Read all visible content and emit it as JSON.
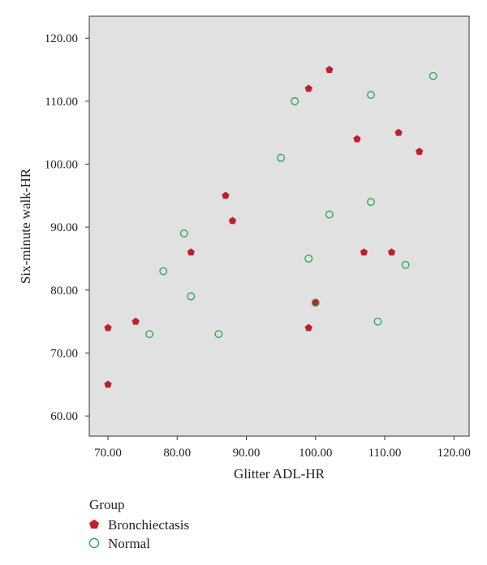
{
  "chart_data": {
    "type": "scatter",
    "xlabel": "Glitter ADL-HR",
    "ylabel": "Six-minute walk-HR",
    "xlim": [
      67.3,
      122.2
    ],
    "ylim": [
      56.8,
      123.5
    ],
    "xticks": [
      70,
      80,
      90,
      100,
      110,
      120
    ],
    "yticks": [
      60,
      70,
      80,
      90,
      100,
      110,
      120
    ],
    "xtick_labels": [
      "70.00",
      "80.00",
      "90.00",
      "100.00",
      "110.00",
      "120.00"
    ],
    "ytick_labels": [
      "60.00",
      "70.00",
      "80.00",
      "90.00",
      "100.00",
      "110.00",
      "120.00"
    ],
    "grid": false,
    "plot_background": "#e1e1e1",
    "legend": {
      "title": "Group",
      "placement": "bottom-left"
    },
    "series": [
      {
        "name": "Bronchiectasis",
        "marker": "pentagon-filled",
        "color": "#c01f2a",
        "points": [
          [
            70,
            74
          ],
          [
            70,
            65
          ],
          [
            74,
            75
          ],
          [
            82,
            86
          ],
          [
            87,
            95
          ],
          [
            88,
            91
          ],
          [
            99,
            112
          ],
          [
            102,
            115
          ],
          [
            99,
            74
          ],
          [
            100,
            78
          ],
          [
            106,
            104
          ],
          [
            107,
            86
          ],
          [
            111,
            86
          ],
          [
            112,
            105
          ],
          [
            115,
            102
          ]
        ]
      },
      {
        "name": "Normal",
        "marker": "circle-open",
        "color": "#22a84a",
        "points": [
          [
            76,
            73
          ],
          [
            78,
            83
          ],
          [
            81,
            89
          ],
          [
            82,
            79
          ],
          [
            86,
            73
          ],
          [
            95,
            101
          ],
          [
            97,
            110
          ],
          [
            99,
            85
          ],
          [
            100,
            78
          ],
          [
            102,
            92
          ],
          [
            108,
            111
          ],
          [
            108,
            94
          ],
          [
            109,
            75
          ],
          [
            113,
            84
          ],
          [
            117,
            114
          ]
        ]
      }
    ]
  }
}
